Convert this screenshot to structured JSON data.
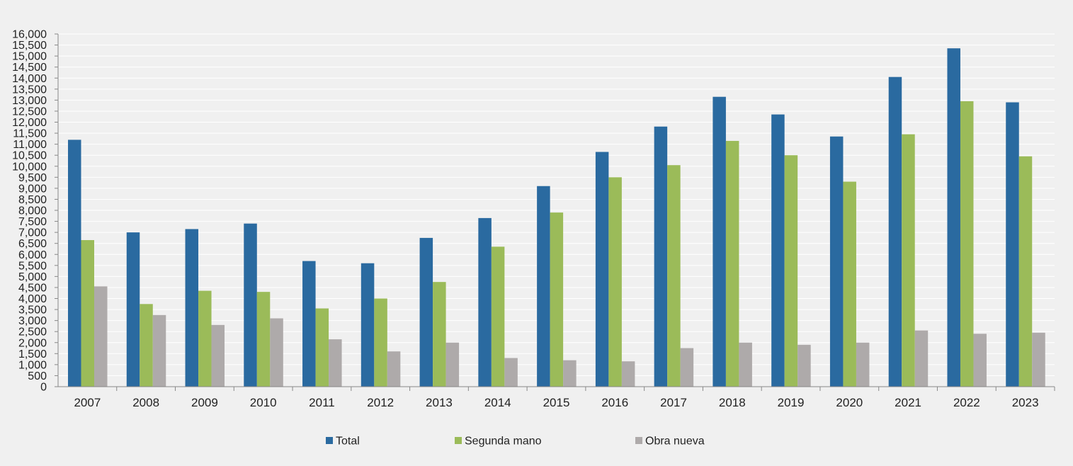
{
  "chart_data": {
    "type": "bar",
    "title": "",
    "xlabel": "",
    "ylabel": "",
    "ylim": [
      0,
      16000
    ],
    "ytick_step": 500,
    "grid": true,
    "legend_position": "bottom",
    "categories": [
      "2007",
      "2008",
      "2009",
      "2010",
      "2011",
      "2012",
      "2013",
      "2014",
      "2015",
      "2016",
      "2017",
      "2018",
      "2019",
      "2020",
      "2021",
      "2022",
      "2023"
    ],
    "series": [
      {
        "name": "Total",
        "color": "#2a6aa0",
        "values": [
          11200,
          7000,
          7150,
          7400,
          5700,
          5600,
          6750,
          7650,
          9100,
          10650,
          11800,
          13150,
          12350,
          11350,
          14050,
          15350,
          12900
        ]
      },
      {
        "name": "Segunda mano",
        "color": "#9bbb59",
        "values": [
          6650,
          3750,
          4350,
          4300,
          3550,
          4000,
          4750,
          6350,
          7900,
          9500,
          10050,
          11150,
          10500,
          9300,
          11450,
          12950,
          10450
        ]
      },
      {
        "name": "Obra nueva",
        "color": "#aeaaaa",
        "values": [
          4550,
          3250,
          2800,
          3100,
          2150,
          1600,
          2000,
          1300,
          1200,
          1150,
          1750,
          2000,
          1900,
          2000,
          2550,
          2400,
          2450
        ]
      }
    ]
  }
}
